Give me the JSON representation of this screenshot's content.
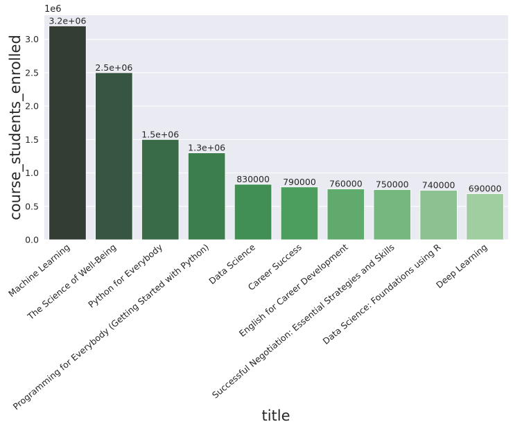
{
  "chart_data": {
    "type": "bar",
    "title": "",
    "xlabel": "title",
    "ylabel": "course_students_enrolled",
    "offset_text": "1e6",
    "ylim": [
      0,
      3.36
    ],
    "yticks": [
      0.0,
      0.5,
      1.0,
      1.5,
      2.0,
      2.5,
      3.0
    ],
    "ytick_labels": [
      "0.0",
      "0.5",
      "1.0",
      "1.5",
      "2.0",
      "2.5",
      "3.0"
    ],
    "grid": true,
    "categories": [
      "Machine Learning",
      "The Science of Well-Being",
      "Python for Everybody",
      "Programming for Everybody (Getting Started with Python)",
      "Data Science",
      "Career Success",
      "English for Career Development",
      "Successful Negotiation: Essential Strategies and Skills",
      "Data Science: Foundations using R",
      "Deep Learning"
    ],
    "values": [
      3200000,
      2500000,
      1500000,
      1300000,
      830000,
      790000,
      760000,
      750000,
      740000,
      690000
    ],
    "data_labels": [
      "3.2e+06",
      "2.5e+06",
      "1.5e+06",
      "1.3e+06",
      "830000",
      "790000",
      "760000",
      "750000",
      "740000",
      "690000"
    ],
    "colors": [
      "#333d34",
      "#375641",
      "#3a6b48",
      "#3d7e4f",
      "#428f56",
      "#4c9e5f",
      "#60aa6e",
      "#76b67f",
      "#8cc291",
      "#a1cea1"
    ],
    "plot_background": "#eaeaf2",
    "grid_color": "#ffffff"
  }
}
